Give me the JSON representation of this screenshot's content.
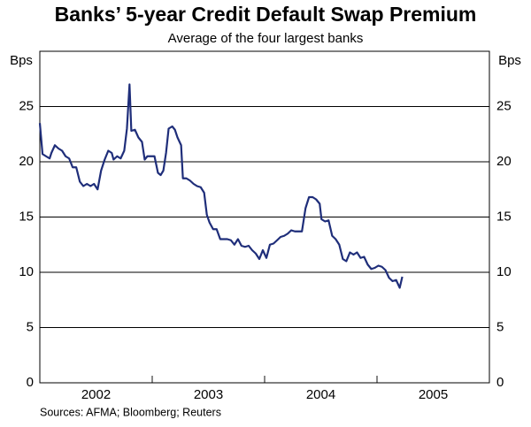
{
  "chart_data": {
    "type": "line",
    "title": "Banks’ 5-year Credit Default Swap Premium",
    "subtitle": "Average of the four largest banks",
    "y_label": "Bps",
    "y2_label": "Bps",
    "source": "Sources: AFMA; Bloomberg; Reuters",
    "xlim": [
      2002,
      2006
    ],
    "xticks": [
      {
        "value": 2002.5,
        "label": "2002"
      },
      {
        "value": 2003.5,
        "label": "2003"
      },
      {
        "value": 2004.5,
        "label": "2004"
      },
      {
        "value": 2005.5,
        "label": "2005"
      }
    ],
    "ylim": [
      0,
      30
    ],
    "yticks": [
      0,
      5,
      10,
      15,
      20,
      25
    ],
    "y2lim": [
      0,
      30
    ],
    "y2ticks": [
      0,
      5,
      10,
      15,
      20,
      25
    ],
    "grid": true,
    "series": [
      {
        "color": "#1f2e7a",
        "x": [
          2002.0,
          2002.024,
          2002.055,
          2002.087,
          2002.103,
          2002.134,
          2002.166,
          2002.198,
          2002.229,
          2002.261,
          2002.292,
          2002.324,
          2002.356,
          2002.387,
          2002.419,
          2002.451,
          2002.482,
          2002.514,
          2002.545,
          2002.577,
          2002.609,
          2002.64,
          2002.656,
          2002.688,
          2002.719,
          2002.751,
          2002.775,
          2002.798,
          2002.814,
          2002.846,
          2002.877,
          2002.909,
          2002.933,
          2002.957,
          2002.988,
          2003.02,
          2003.051,
          2003.075,
          2003.099,
          2003.123,
          2003.146,
          2003.178,
          2003.202,
          2003.225,
          2003.257,
          2003.273,
          2003.304,
          2003.336,
          2003.368,
          2003.399,
          2003.431,
          2003.462,
          2003.486,
          2003.51,
          2003.542,
          2003.573,
          2003.605,
          2003.636,
          2003.668,
          2003.7,
          2003.731,
          2003.763,
          2003.794,
          2003.826,
          2003.858,
          2003.889,
          2003.921,
          2003.953,
          2003.984,
          2004.016,
          2004.047,
          2004.079,
          2004.111,
          2004.142,
          2004.174,
          2004.206,
          2004.237,
          2004.269,
          2004.3,
          2004.332,
          2004.364,
          2004.395,
          2004.427,
          2004.458,
          2004.49,
          2004.506,
          2004.538,
          2004.569,
          2004.601,
          2004.632,
          2004.664,
          2004.696,
          2004.727,
          2004.759,
          2004.791,
          2004.822,
          2004.854,
          2004.885,
          2004.917,
          2004.949,
          2004.98,
          2005.012,
          2005.043,
          2005.075,
          2005.107,
          2005.138,
          2005.17,
          2005.202,
          2005.225
        ],
        "values": [
          23.5,
          20.7,
          20.5,
          20.3,
          20.8,
          21.5,
          21.2,
          21.0,
          20.5,
          20.3,
          19.5,
          19.5,
          18.2,
          17.8,
          18.0,
          17.8,
          18.0,
          17.5,
          19.2,
          20.2,
          21.0,
          20.8,
          20.2,
          20.5,
          20.3,
          21.0,
          23.0,
          27.0,
          22.8,
          22.9,
          22.2,
          21.8,
          20.2,
          20.5,
          20.5,
          20.5,
          19.0,
          18.8,
          19.2,
          20.8,
          23.0,
          23.2,
          22.9,
          22.2,
          21.5,
          18.5,
          18.5,
          18.3,
          18.0,
          17.8,
          17.7,
          17.2,
          15.2,
          14.5,
          13.9,
          13.9,
          13.0,
          13.0,
          13.0,
          12.9,
          12.5,
          13.0,
          12.4,
          12.3,
          12.4,
          12.0,
          11.7,
          11.2,
          12.0,
          11.3,
          12.5,
          12.6,
          12.9,
          13.2,
          13.3,
          13.5,
          13.8,
          13.7,
          13.7,
          13.7,
          15.8,
          16.8,
          16.8,
          16.6,
          16.2,
          14.8,
          14.6,
          14.7,
          13.3,
          13.0,
          12.5,
          11.2,
          11.0,
          11.8,
          11.6,
          11.8,
          11.3,
          11.4,
          10.7,
          10.3,
          10.4,
          10.6,
          10.5,
          10.2,
          9.5,
          9.2,
          9.3,
          8.6,
          9.6
        ]
      }
    ]
  }
}
